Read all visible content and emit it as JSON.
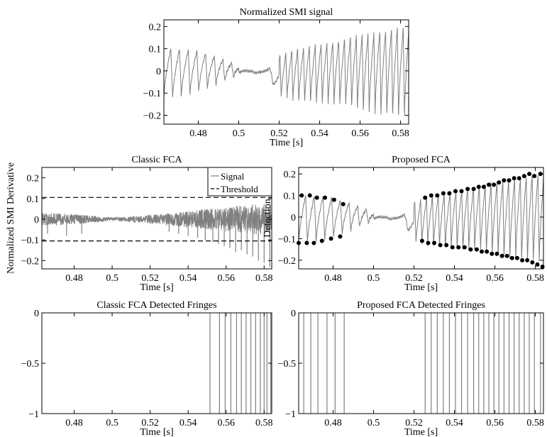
{
  "figure": {
    "background": "#ffffff",
    "signal_color": "#808080",
    "threshold_color": "#000000",
    "marker_color": "#000000"
  },
  "chart_data": [
    {
      "id": "top",
      "type": "line",
      "title": "Normalized SMI signal",
      "xlabel": "Time [s]",
      "ylabel": "",
      "xlim": [
        0.463,
        0.584
      ],
      "ylim": [
        -0.24,
        0.23
      ],
      "xticks": [
        0.48,
        0.5,
        0.52,
        0.54,
        0.56,
        0.58
      ],
      "xtick_labels": [
        "0.48",
        "0.5",
        "0.52",
        "0.54",
        "0.56",
        "0.58"
      ],
      "yticks": [
        -0.2,
        -0.1,
        0,
        0.1,
        0.2
      ],
      "ytick_labels": [
        "−0.2",
        "−0.1",
        "0",
        "0.1",
        "0.2"
      ],
      "series": [
        {
          "kind": "sawtooth",
          "x": [
            0.463,
            0.47,
            0.48,
            0.49,
            0.5,
            0.505,
            0.51,
            0.515,
            0.52,
            0.53,
            0.54,
            0.55,
            0.56,
            0.57,
            0.58,
            0.584
          ],
          "upper": [
            0.1,
            0.1,
            0.09,
            0.06,
            0.02,
            0.0,
            0.0,
            0.01,
            0.07,
            0.1,
            0.12,
            0.14,
            0.16,
            0.18,
            0.2,
            0.2
          ],
          "lower": [
            -0.12,
            -0.12,
            -0.1,
            -0.06,
            -0.02,
            -0.01,
            -0.01,
            -0.03,
            -0.12,
            -0.14,
            -0.15,
            -0.16,
            -0.18,
            -0.2,
            -0.22,
            -0.22
          ]
        }
      ]
    },
    {
      "id": "classic",
      "type": "line",
      "title": "Classic FCA",
      "xlabel": "Time [s]",
      "ylabel": "Normalized SMI Derivative",
      "xlim": [
        0.463,
        0.584
      ],
      "ylim": [
        -0.24,
        0.25
      ],
      "xticks": [
        0.48,
        0.5,
        0.52,
        0.54,
        0.56,
        0.58
      ],
      "xtick_labels": [
        "0.48",
        "0.5",
        "0.52",
        "0.54",
        "0.56",
        "0.58"
      ],
      "yticks": [
        -0.2,
        -0.1,
        0,
        0.1,
        0.2
      ],
      "ytick_labels": [
        "−0.2",
        "−0.1",
        "0",
        "0.1",
        "0.2"
      ],
      "threshold": [
        0.105,
        -0.105
      ],
      "legend": {
        "placement": "top-right",
        "entries": [
          "Signal",
          "Threshold"
        ]
      },
      "series": [
        {
          "name": "Signal",
          "kind": "noise",
          "x": [
            0.463,
            0.48,
            0.5,
            0.52,
            0.54,
            0.56,
            0.584
          ],
          "amplitude": [
            0.03,
            0.025,
            0.008,
            0.02,
            0.04,
            0.06,
            0.08
          ]
        }
      ],
      "spikes": {
        "x": [
          0.466,
          0.476,
          0.484,
          0.53,
          0.535,
          0.54,
          0.545,
          0.549,
          0.553,
          0.556,
          0.559,
          0.562,
          0.565,
          0.568,
          0.571,
          0.574,
          0.577,
          0.58,
          0.583
        ],
        "y": [
          -0.07,
          -0.08,
          -0.07,
          -0.06,
          -0.07,
          -0.08,
          -0.09,
          -0.1,
          -0.11,
          -0.12,
          -0.13,
          -0.14,
          -0.16,
          -0.15,
          -0.17,
          -0.18,
          -0.2,
          -0.21,
          -0.23
        ]
      }
    },
    {
      "id": "proposed",
      "type": "line",
      "title": "Proposed FCA",
      "xlabel": "Time [s]",
      "ylabel": "Detection",
      "xlim": [
        0.463,
        0.584
      ],
      "ylim": [
        -0.24,
        0.23
      ],
      "xticks": [
        0.48,
        0.5,
        0.52,
        0.54,
        0.56,
        0.58
      ],
      "xtick_labels": [
        "0.48",
        "0.5",
        "0.52",
        "0.54",
        "0.56",
        "0.58"
      ],
      "yticks": [
        -0.2,
        -0.1,
        0,
        0.1,
        0.2
      ],
      "ytick_labels": [
        "−0.2",
        "−0.1",
        "0",
        "0.1",
        "0.2"
      ],
      "series": [
        {
          "kind": "sawtooth",
          "x": [
            0.463,
            0.47,
            0.48,
            0.49,
            0.5,
            0.505,
            0.51,
            0.515,
            0.52,
            0.53,
            0.54,
            0.55,
            0.56,
            0.57,
            0.58,
            0.584
          ],
          "upper": [
            0.1,
            0.1,
            0.09,
            0.06,
            0.02,
            0.0,
            0.0,
            0.01,
            0.07,
            0.1,
            0.12,
            0.14,
            0.16,
            0.18,
            0.2,
            0.2
          ],
          "lower": [
            -0.12,
            -0.12,
            -0.1,
            -0.06,
            -0.02,
            -0.01,
            -0.01,
            -0.03,
            -0.12,
            -0.14,
            -0.15,
            -0.16,
            -0.18,
            -0.2,
            -0.22,
            -0.22
          ]
        }
      ],
      "markers": {
        "max_x": [
          0.4645,
          0.4685,
          0.472,
          0.476,
          0.4805,
          0.485,
          0.5255,
          0.5285,
          0.5315,
          0.5345,
          0.5375,
          0.5405,
          0.5435,
          0.5465,
          0.5495,
          0.552,
          0.5545,
          0.557,
          0.5595,
          0.562,
          0.5645,
          0.567,
          0.5695,
          0.572,
          0.5745,
          0.577,
          0.5795,
          0.5825
        ],
        "max_y": [
          0.1,
          0.1,
          0.09,
          0.09,
          0.08,
          0.06,
          0.09,
          0.1,
          0.1,
          0.11,
          0.11,
          0.12,
          0.12,
          0.13,
          0.13,
          0.14,
          0.14,
          0.15,
          0.15,
          0.16,
          0.17,
          0.17,
          0.18,
          0.18,
          0.19,
          0.2,
          0.19,
          0.2
        ],
        "min_x": [
          0.463,
          0.467,
          0.4705,
          0.4745,
          0.479,
          0.4835,
          0.524,
          0.527,
          0.53,
          0.533,
          0.536,
          0.539,
          0.542,
          0.545,
          0.548,
          0.551,
          0.5535,
          0.556,
          0.5585,
          0.561,
          0.5635,
          0.566,
          0.5685,
          0.571,
          0.5735,
          0.576,
          0.5785,
          0.581,
          0.5835
        ],
        "min_y": [
          -0.12,
          -0.12,
          -0.12,
          -0.11,
          -0.1,
          -0.09,
          -0.11,
          -0.12,
          -0.12,
          -0.13,
          -0.13,
          -0.14,
          -0.14,
          -0.14,
          -0.15,
          -0.15,
          -0.16,
          -0.16,
          -0.17,
          -0.17,
          -0.18,
          -0.18,
          -0.19,
          -0.19,
          -0.2,
          -0.2,
          -0.21,
          -0.22,
          -0.23
        ]
      }
    },
    {
      "id": "classic_fringes",
      "type": "line",
      "title": "Classic FCA Detected Fringes",
      "xlabel": "Time [s]",
      "ylabel": "",
      "xlim": [
        0.463,
        0.584
      ],
      "ylim": [
        -1,
        0
      ],
      "xticks": [
        0.48,
        0.5,
        0.52,
        0.54,
        0.56,
        0.58
      ],
      "xtick_labels": [
        "0.48",
        "0.5",
        "0.52",
        "0.54",
        "0.56",
        "0.58"
      ],
      "yticks": [
        -1,
        -0.5,
        0
      ],
      "ytick_labels": [
        "−1",
        "−0.5",
        "0"
      ],
      "fringes_x": [
        0.5515,
        0.5565,
        0.5595,
        0.5625,
        0.5655,
        0.568,
        0.5705,
        0.573,
        0.5755,
        0.578,
        0.58,
        0.5815,
        0.5835
      ]
    },
    {
      "id": "proposed_fringes",
      "type": "line",
      "title": "Proposed FCA Detected Fringes",
      "xlabel": "Time [s]",
      "ylabel": "",
      "xlim": [
        0.463,
        0.584
      ],
      "ylim": [
        -1,
        0
      ],
      "xticks": [
        0.48,
        0.5,
        0.52,
        0.54,
        0.56,
        0.58
      ],
      "xtick_labels": [
        "0.48",
        "0.5",
        "0.52",
        "0.54",
        "0.56",
        "0.58"
      ],
      "yticks": [
        -1,
        -0.5,
        0
      ],
      "ytick_labels": [
        "−1",
        "−0.5",
        "0"
      ],
      "fringes_x": [
        0.4655,
        0.469,
        0.4725,
        0.477,
        0.481,
        0.4855,
        0.5255,
        0.5285,
        0.5315,
        0.5345,
        0.5375,
        0.5405,
        0.5435,
        0.5465,
        0.5495,
        0.552,
        0.5545,
        0.557,
        0.5595,
        0.562,
        0.5645,
        0.567,
        0.5695,
        0.572,
        0.5745,
        0.577,
        0.5795,
        0.5825
      ]
    }
  ]
}
